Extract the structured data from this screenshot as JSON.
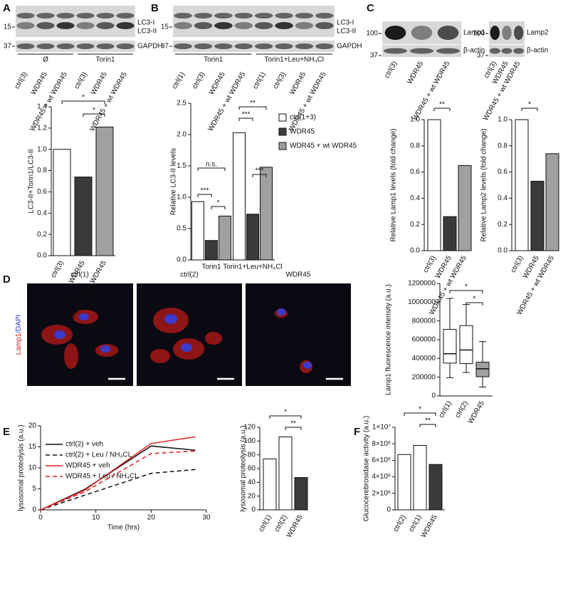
{
  "panel_labels": [
    "A",
    "B",
    "C",
    "D",
    "E",
    "F"
  ],
  "blots": [
    {
      "markers": [
        "15",
        "37"
      ],
      "bands": [
        "LC3-I",
        "LC3-II",
        "GAPDH"
      ],
      "groups": [
        "Ø",
        "Torin1"
      ],
      "lanes": [
        "ctrl(3)",
        "WDR45",
        "WDR45 + wt WDR45",
        "ctrl(3)",
        "WDR45",
        "WDR45 + wt WDR45"
      ]
    },
    {
      "markers": [
        "15",
        "37"
      ],
      "bands": [
        "LC3-I",
        "LC3-II",
        "GAPDH"
      ],
      "groups": [
        "Torin1",
        "Torin1+Leu+NH₄Cl"
      ],
      "lanes": [
        "ctrl(1)",
        "ctrl(3)",
        "WDR45",
        "WDR45 + wt WDR45",
        "ctrl(1)",
        "ctrl(3)",
        "WDR45",
        "WDR45 + wt WDR45"
      ]
    },
    {
      "markers": [
        "100",
        "37"
      ],
      "bands": [
        "Lamp1",
        "β-actin"
      ],
      "lanes": [
        "ctrl(3)",
        "WDR45",
        "WDR45 + wt WDR45"
      ]
    },
    {
      "markers": [
        "100",
        "37"
      ],
      "bands": [
        "Lamp2",
        "β-actin"
      ],
      "lanes": [
        "ctrl(3)",
        "WDR45",
        "WDR45 + wt WDR45"
      ]
    }
  ],
  "micrographs": {
    "titles": [
      "ctrl(1)",
      "ctrl(2)",
      "WDR45"
    ],
    "stain": [
      "Lamp1",
      "/DAPI"
    ]
  },
  "chart_data": [
    {
      "type": "bar",
      "ylabel": "LC3-II+Torin1/LC3-II",
      "categories": [
        "ctrl(3)",
        "WDR45",
        "WDR45 + wt WDR45"
      ],
      "values": [
        1.0,
        0.74,
        1.21
      ],
      "colors": [
        "#ffffff",
        "#3a3a3a",
        "#a0a0a0"
      ],
      "ylim": [
        0,
        1.4
      ],
      "yticks": [
        {
          "value": 0,
          "label": "0.0"
        },
        0.2,
        0.4,
        0.6,
        0.8,
        {
          "value": 1,
          "label": "1.0"
        },
        1.2,
        1.4
      ],
      "annotations": [
        "*",
        "*"
      ]
    },
    {
      "type": "grouped-bar",
      "ylabel": "Relative LC3-II levels",
      "categories": [
        "Torin1",
        "Torin1+Leu+NH₄Cl"
      ],
      "series": [
        {
          "name": "ctrl(1+3)",
          "color": "#ffffff",
          "values": [
            0.93,
            2.03
          ]
        },
        {
          "name": "WDR45",
          "color": "#3a3a3a",
          "values": [
            0.31,
            0.73
          ]
        },
        {
          "name": "WDR45 + wt WDR45",
          "color": "#a0a0a0",
          "values": [
            0.7,
            1.48
          ]
        }
      ],
      "ylim": [
        0,
        2.5
      ],
      "yticks": [
        {
          "value": 0,
          "label": "0.0"
        },
        0.5,
        {
          "value": 1,
          "label": "1.0"
        },
        1.5,
        {
          "value": 2,
          "label": "2.0"
        },
        2.5
      ],
      "annotations": [
        "n.s.",
        "***",
        "*",
        "**",
        "***",
        "***"
      ]
    },
    {
      "type": "bar",
      "ylabel": "Relative Lamp1 levels (fold change)",
      "categories": [
        "ctrl(3)",
        "WDR45",
        "WDR45 + wt WDR45"
      ],
      "values": [
        1.0,
        0.26,
        0.65
      ],
      "colors": [
        "#ffffff",
        "#3a3a3a",
        "#a0a0a0"
      ],
      "ylim": [
        0,
        1
      ],
      "yticks": [
        {
          "value": 0,
          "label": "0.0"
        },
        0.2,
        0.4,
        0.6,
        0.8,
        {
          "value": 1,
          "label": "1.0"
        }
      ],
      "annotations": [
        "**"
      ]
    },
    {
      "type": "bar",
      "ylabel": "Relative Lamp2 levels (fold change)",
      "categories": [
        "ctrl(3)",
        "WDR45",
        "WDR45 + wt WDR45"
      ],
      "values": [
        1.0,
        0.53,
        0.74
      ],
      "colors": [
        "#ffffff",
        "#3a3a3a",
        "#a0a0a0"
      ],
      "ylim": [
        0,
        1
      ],
      "yticks": [
        {
          "value": 0,
          "label": "0.0"
        },
        0.2,
        0.4,
        0.6,
        0.8,
        {
          "value": 1,
          "label": "1.0"
        }
      ],
      "annotations": [
        "*"
      ]
    },
    {
      "type": "box",
      "ylabel": "Lamp1 fluorescence intensity (a.u.)",
      "categories": [
        "ctrl(1)",
        "ctrl(2)",
        "WDR45"
      ],
      "boxes": [
        {
          "min": 195000,
          "q1": 350000,
          "median": 450000,
          "q3": 710000,
          "max": 1040000
        },
        {
          "min": 250000,
          "q1": 345000,
          "median": 490000,
          "q3": 750000,
          "max": 975000
        },
        {
          "min": 95000,
          "q1": 205000,
          "median": 290000,
          "q3": 360000,
          "max": 580000
        }
      ],
      "colors": [
        "#ffffff",
        "#ffffff",
        "#a0a0a0"
      ],
      "ylim": [
        0,
        1200000
      ],
      "yticks": [
        0,
        200000,
        400000,
        600000,
        800000,
        1000000,
        1200000
      ],
      "annotations": [
        "*",
        "*"
      ]
    },
    {
      "type": "line",
      "xlabel": "Time (hrs)",
      "ylabel": "lysosomal proteolysis (a.u.)",
      "x": [
        0,
        8,
        20,
        28
      ],
      "series": [
        {
          "name": "ctrl(2) + veh",
          "color": "#111111",
          "style": "solid",
          "values": [
            0,
            4.9,
            15.2,
            14.2
          ]
        },
        {
          "name": "ctrl(2) + Leu / NH₄CL",
          "color": "#111111",
          "style": "dashed",
          "values": [
            0,
            3.5,
            8.7,
            9.6
          ]
        },
        {
          "name": "WDR45 + veh",
          "color": "#e02020",
          "style": "solid",
          "values": [
            0,
            4.7,
            15.8,
            17.4
          ]
        },
        {
          "name": "WDR45 + Leu / NH₄CL",
          "color": "#e02020",
          "style": "dashed",
          "values": [
            0,
            4.3,
            13.4,
            14.0
          ]
        }
      ],
      "xlim": [
        0,
        30
      ],
      "xticks": [
        0,
        10,
        20,
        30
      ],
      "ylim": [
        0,
        20
      ],
      "yticks": [
        0,
        5,
        10,
        15,
        20
      ]
    },
    {
      "type": "bar",
      "ylabel": "lysosomal proteolysis (a.u.)",
      "categories": [
        "ctrl(1)",
        "ctrl(2)",
        "WDR45"
      ],
      "values": [
        74,
        106,
        47
      ],
      "colors": [
        "#ffffff",
        "#ffffff",
        "#3a3a3a"
      ],
      "ylim": [
        0,
        120
      ],
      "yticks": [
        0,
        20,
        40,
        60,
        80,
        100,
        120
      ],
      "annotations": [
        "*",
        "**"
      ]
    },
    {
      "type": "bar",
      "ylabel": "Glucocerebrosidase activity (a.u.)",
      "categories": [
        "ctrl(2)",
        "ctrl(1)",
        "WDR45"
      ],
      "values": [
        6700000,
        7800000,
        5500000
      ],
      "colors": [
        "#ffffff",
        "#ffffff",
        "#3a3a3a"
      ],
      "ylim": [
        0,
        10000000
      ],
      "yticks": [
        0,
        {
          "value": 2000000,
          "label": "2×10⁶"
        },
        {
          "value": 4000000,
          "label": "4×10⁶"
        },
        {
          "value": 6000000,
          "label": "6×10⁶"
        },
        {
          "value": 8000000,
          "label": "8×10⁶"
        },
        {
          "value": 10000000,
          "label": "1×10⁷"
        }
      ],
      "annotations": [
        "*",
        "**"
      ]
    }
  ]
}
